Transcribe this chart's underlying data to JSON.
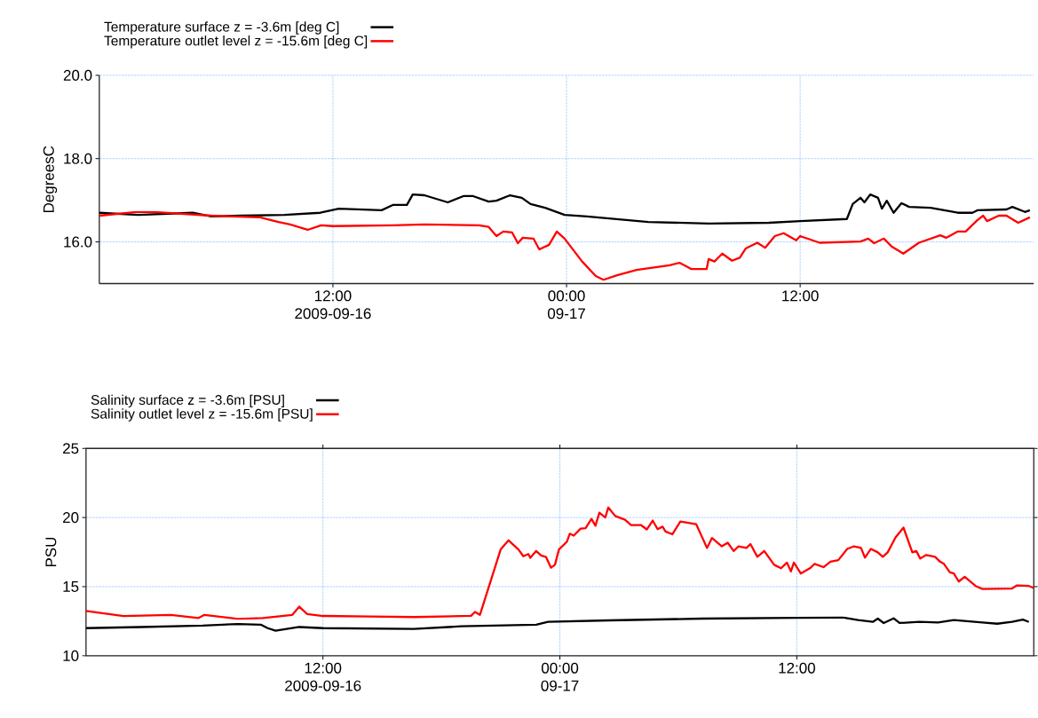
{
  "chart_data": [
    {
      "type": "line",
      "ylabel": "DegreesC",
      "xlim": [
        "2009-09-16T00:00",
        "2009-09-18T00:00"
      ],
      "xticks": [
        {
          "value": "2009-09-16T12:00",
          "label": "12:00 2009-09-16"
        },
        {
          "value": "2009-09-17T00:00",
          "label": "00:00 09-17"
        },
        {
          "value": "2009-09-17T12:00",
          "label": "12:00"
        }
      ],
      "ylim": [
        15.0,
        20.0
      ],
      "yticks": [
        {
          "value": 16,
          "label": "16.0"
        },
        {
          "value": 18,
          "label": "18.0"
        },
        {
          "value": 20,
          "label": "20.0"
        }
      ],
      "grid": true,
      "legend": "top left",
      "series": [
        {
          "name": "Temperature surface z = -3.6m [deg C]",
          "color": "#000000",
          "x": [
            "2009-09-16T00:00",
            "2009-09-16T02:00",
            "2009-09-16T04:48",
            "2009-09-16T05:45",
            "2009-09-16T07:18",
            "2009-09-16T09:30",
            "2009-09-16T11:21",
            "2009-09-16T12:18",
            "2009-09-16T14:30",
            "2009-09-16T15:06",
            "2009-09-16T15:48",
            "2009-09-16T16:06",
            "2009-09-16T16:42",
            "2009-09-16T17:54",
            "2009-09-16T18:42",
            "2009-09-16T19:12",
            "2009-09-16T20:00",
            "2009-09-16T20:24",
            "2009-09-16T21:06",
            "2009-09-16T21:42",
            "2009-09-16T22:09",
            "2009-09-16T22:54",
            "2009-09-16T23:54",
            "2009-09-17T01:03",
            "2009-09-17T04:12",
            "2009-09-17T07:18",
            "2009-09-17T10:24",
            "2009-09-17T12:00",
            "2009-09-17T14:24",
            "2009-09-17T14:42",
            "2009-09-17T15:06",
            "2009-09-17T15:18",
            "2009-09-17T15:36",
            "2009-09-17T16:00",
            "2009-09-17T16:12",
            "2009-09-17T16:27",
            "2009-09-17T16:48",
            "2009-09-17T17:12",
            "2009-09-17T17:36",
            "2009-09-17T18:42",
            "2009-09-17T20:06",
            "2009-09-17T20:51",
            "2009-09-17T21:06",
            "2009-09-17T22:36",
            "2009-09-17T22:54",
            "2009-09-17T23:33",
            "2009-09-17T23:48"
          ],
          "values": [
            16.7,
            16.65,
            16.7,
            16.61,
            16.63,
            16.65,
            16.7,
            16.8,
            16.76,
            16.89,
            16.89,
            17.14,
            17.12,
            16.95,
            17.1,
            17.1,
            16.97,
            16.99,
            17.12,
            17.06,
            16.91,
            16.82,
            16.65,
            16.61,
            16.48,
            16.44,
            16.46,
            16.5,
            16.55,
            16.91,
            17.06,
            16.95,
            17.14,
            17.06,
            16.8,
            16.99,
            16.7,
            16.93,
            16.84,
            16.82,
            16.7,
            16.7,
            16.76,
            16.78,
            16.84,
            16.72,
            16.76
          ]
        },
        {
          "name": "Temperature outlet level z = -15.6m [deg C]",
          "color": "#ff0000",
          "x": [
            "2009-09-16T00:00",
            "2009-09-16T01:54",
            "2009-09-16T02:48",
            "2009-09-16T05:45",
            "2009-09-16T08:15",
            "2009-09-16T09:12",
            "2009-09-16T09:48",
            "2009-09-16T10:42",
            "2009-09-16T11:24",
            "2009-09-16T12:00",
            "2009-09-16T15:06",
            "2009-09-16T16:42",
            "2009-09-16T19:30",
            "2009-09-16T20:00",
            "2009-09-16T20:24",
            "2009-09-16T20:45",
            "2009-09-16T21:12",
            "2009-09-16T21:30",
            "2009-09-16T21:45",
            "2009-09-16T22:18",
            "2009-09-16T22:36",
            "2009-09-16T23:06",
            "2009-09-16T23:30",
            "2009-09-16T23:54",
            "2009-09-17T00:48",
            "2009-09-17T01:30",
            "2009-09-17T01:54",
            "2009-09-17T02:36",
            "2009-09-17T03:36",
            "2009-09-17T05:18",
            "2009-09-17T05:48",
            "2009-09-17T06:24",
            "2009-09-17T07:12",
            "2009-09-17T07:18",
            "2009-09-17T07:36",
            "2009-09-17T08:00",
            "2009-09-17T08:30",
            "2009-09-17T08:54",
            "2009-09-17T09:12",
            "2009-09-17T09:48",
            "2009-09-17T10:12",
            "2009-09-17T10:42",
            "2009-09-17T11:09",
            "2009-09-17T11:48",
            "2009-09-17T12:00",
            "2009-09-17T13:00",
            "2009-09-17T15:06",
            "2009-09-17T15:30",
            "2009-09-17T15:48",
            "2009-09-17T16:18",
            "2009-09-17T16:42",
            "2009-09-17T17:18",
            "2009-09-17T18:06",
            "2009-09-17T19:12",
            "2009-09-17T19:30",
            "2009-09-17T20:06",
            "2009-09-17T20:30",
            "2009-09-17T21:06",
            "2009-09-17T21:24",
            "2009-09-17T21:36",
            "2009-09-17T22:12",
            "2009-09-17T22:36",
            "2009-09-17T23:12",
            "2009-09-17T23:48"
          ],
          "values": [
            16.63,
            16.72,
            16.72,
            16.63,
            16.59,
            16.48,
            16.42,
            16.29,
            16.4,
            16.38,
            16.4,
            16.42,
            16.4,
            16.36,
            16.14,
            16.25,
            16.23,
            15.97,
            16.1,
            16.08,
            15.82,
            15.93,
            16.25,
            16.08,
            15.53,
            15.18,
            15.09,
            15.2,
            15.33,
            15.44,
            15.5,
            15.35,
            15.35,
            15.59,
            15.53,
            15.72,
            15.55,
            15.62,
            15.84,
            15.98,
            15.86,
            16.14,
            16.21,
            16.04,
            16.14,
            15.98,
            16.01,
            16.08,
            15.97,
            16.08,
            15.89,
            15.72,
            15.98,
            16.16,
            16.1,
            16.25,
            16.25,
            16.52,
            16.63,
            16.5,
            16.63,
            16.63,
            16.46,
            16.59
          ]
        }
      ]
    },
    {
      "type": "line",
      "ylabel": "PSU",
      "xlim": [
        "2009-09-16T00:00",
        "2009-09-18T00:00"
      ],
      "xticks": [
        {
          "value": "2009-09-16T12:00",
          "label": "12:00 2009-09-16"
        },
        {
          "value": "2009-09-17T00:00",
          "label": "00:00 09-17"
        },
        {
          "value": "2009-09-17T12:00",
          "label": "12:00"
        }
      ],
      "ylim": [
        10,
        25
      ],
      "yticks": [
        10,
        15,
        20,
        25
      ],
      "grid": true,
      "legend": "top left",
      "series": [
        {
          "name": "Salinity surface z = -3.6m [PSU]",
          "color": "#000000",
          "x": [
            "2009-09-16T00:00",
            "2009-09-16T02:48",
            "2009-09-16T05:54",
            "2009-09-16T07:42",
            "2009-09-16T08:51",
            "2009-09-16T09:12",
            "2009-09-16T09:36",
            "2009-09-16T10:48",
            "2009-09-16T12:00",
            "2009-09-16T16:36",
            "2009-09-16T19:00",
            "2009-09-16T22:48",
            "2009-09-16T23:24",
            "2009-09-17T02:30",
            "2009-09-17T07:12",
            "2009-09-17T12:00",
            "2009-09-17T14:18",
            "2009-09-17T15:06",
            "2009-09-17T15:51",
            "2009-09-17T16:06",
            "2009-09-17T16:24",
            "2009-09-17T16:54",
            "2009-09-17T17:12",
            "2009-09-17T18:12",
            "2009-09-17T19:09",
            "2009-09-17T19:57",
            "2009-09-17T21:24",
            "2009-09-17T22:09",
            "2009-09-17T22:54",
            "2009-09-17T23:27",
            "2009-09-17T23:45"
          ],
          "values": [
            12.0,
            12.08,
            12.18,
            12.3,
            12.25,
            12.0,
            11.81,
            12.08,
            12.0,
            11.94,
            12.13,
            12.25,
            12.45,
            12.56,
            12.69,
            12.75,
            12.77,
            12.58,
            12.45,
            12.69,
            12.37,
            12.71,
            12.37,
            12.45,
            12.41,
            12.58,
            12.41,
            12.32,
            12.45,
            12.62,
            12.45
          ]
        },
        {
          "name": "Salinity outlet level z = -15.6m [PSU]",
          "color": "#ff0000",
          "x": [
            "2009-09-16T00:00",
            "2009-09-16T01:54",
            "2009-09-16T04:18",
            "2009-09-16T05:42",
            "2009-09-16T06:00",
            "2009-09-16T07:42",
            "2009-09-16T08:57",
            "2009-09-16T10:27",
            "2009-09-16T10:48",
            "2009-09-16T11:12",
            "2009-09-16T12:00",
            "2009-09-16T14:21",
            "2009-09-16T16:39",
            "2009-09-16T19:30",
            "2009-09-16T19:42",
            "2009-09-16T19:57",
            "2009-09-16T21:00",
            "2009-09-16T21:24",
            "2009-09-16T21:54",
            "2009-09-16T22:09",
            "2009-09-16T22:24",
            "2009-09-16T22:30",
            "2009-09-16T22:48",
            "2009-09-16T23:03",
            "2009-09-16T23:18",
            "2009-09-16T23:33",
            "2009-09-16T23:45",
            "2009-09-16T23:57",
            "2009-09-17T00:21",
            "2009-09-17T00:30",
            "2009-09-17T00:42",
            "2009-09-17T01:03",
            "2009-09-17T01:18",
            "2009-09-17T01:36",
            "2009-09-17T01:48",
            "2009-09-17T02:00",
            "2009-09-17T02:18",
            "2009-09-17T02:27",
            "2009-09-17T02:48",
            "2009-09-17T03:18",
            "2009-09-17T03:36",
            "2009-09-17T04:06",
            "2009-09-17T04:24",
            "2009-09-17T04:42",
            "2009-09-17T04:57",
            "2009-09-17T05:12",
            "2009-09-17T05:21",
            "2009-09-17T05:42",
            "2009-09-17T06:06",
            "2009-09-17T06:54",
            "2009-09-17T07:27",
            "2009-09-17T07:42",
            "2009-09-17T08:12",
            "2009-09-17T08:30",
            "2009-09-17T08:48",
            "2009-09-17T09:03",
            "2009-09-17T09:27",
            "2009-09-17T09:39",
            "2009-09-17T10:00",
            "2009-09-17T10:21",
            "2009-09-17T10:51",
            "2009-09-17T11:12",
            "2009-09-17T11:30",
            "2009-09-17T11:42",
            "2009-09-17T11:51",
            "2009-09-17T12:12",
            "2009-09-17T12:42",
            "2009-09-17T12:54",
            "2009-09-17T13:21",
            "2009-09-17T13:42",
            "2009-09-17T14:06",
            "2009-09-17T14:33",
            "2009-09-17T14:54",
            "2009-09-17T15:15",
            "2009-09-17T15:27",
            "2009-09-17T15:45",
            "2009-09-17T16:06",
            "2009-09-17T16:21",
            "2009-09-17T16:36",
            "2009-09-17T17:00",
            "2009-09-17T17:24",
            "2009-09-17T17:51",
            "2009-09-17T18:03",
            "2009-09-17T18:15",
            "2009-09-17T18:33",
            "2009-09-17T19:00",
            "2009-09-17T19:15",
            "2009-09-17T19:27",
            "2009-09-17T19:45",
            "2009-09-17T19:57",
            "2009-09-17T20:12",
            "2009-09-17T20:30",
            "2009-09-17T21:03",
            "2009-09-17T21:24",
            "2009-09-17T22:54",
            "2009-09-17T23:09",
            "2009-09-17T23:45",
            "2009-09-18T00:00"
          ],
          "values": [
            13.24,
            12.88,
            12.96,
            12.73,
            12.96,
            12.67,
            12.73,
            12.96,
            13.55,
            13.02,
            12.88,
            12.84,
            12.8,
            12.89,
            13.17,
            12.96,
            17.69,
            18.35,
            17.69,
            17.2,
            17.36,
            17.08,
            17.58,
            17.25,
            17.14,
            16.37,
            16.58,
            17.69,
            18.24,
            18.83,
            18.69,
            19.2,
            19.23,
            19.9,
            19.41,
            20.35,
            20.0,
            20.73,
            20.11,
            19.84,
            19.46,
            19.46,
            19.14,
            19.78,
            19.16,
            19.34,
            18.99,
            18.79,
            19.71,
            19.52,
            17.8,
            18.52,
            17.92,
            18.18,
            17.58,
            17.92,
            17.8,
            18.08,
            17.16,
            17.58,
            16.58,
            16.33,
            16.74,
            16.1,
            16.74,
            15.95,
            16.37,
            16.65,
            16.41,
            16.81,
            16.92,
            17.73,
            17.92,
            17.8,
            17.1,
            17.73,
            17.48,
            17.16,
            17.48,
            18.56,
            19.27,
            17.48,
            17.58,
            17.03,
            17.29,
            17.16,
            16.81,
            16.65,
            16.04,
            15.95,
            15.37,
            15.71,
            15.05,
            14.83,
            14.87,
            15.09,
            15.05,
            14.9
          ]
        }
      ]
    }
  ]
}
